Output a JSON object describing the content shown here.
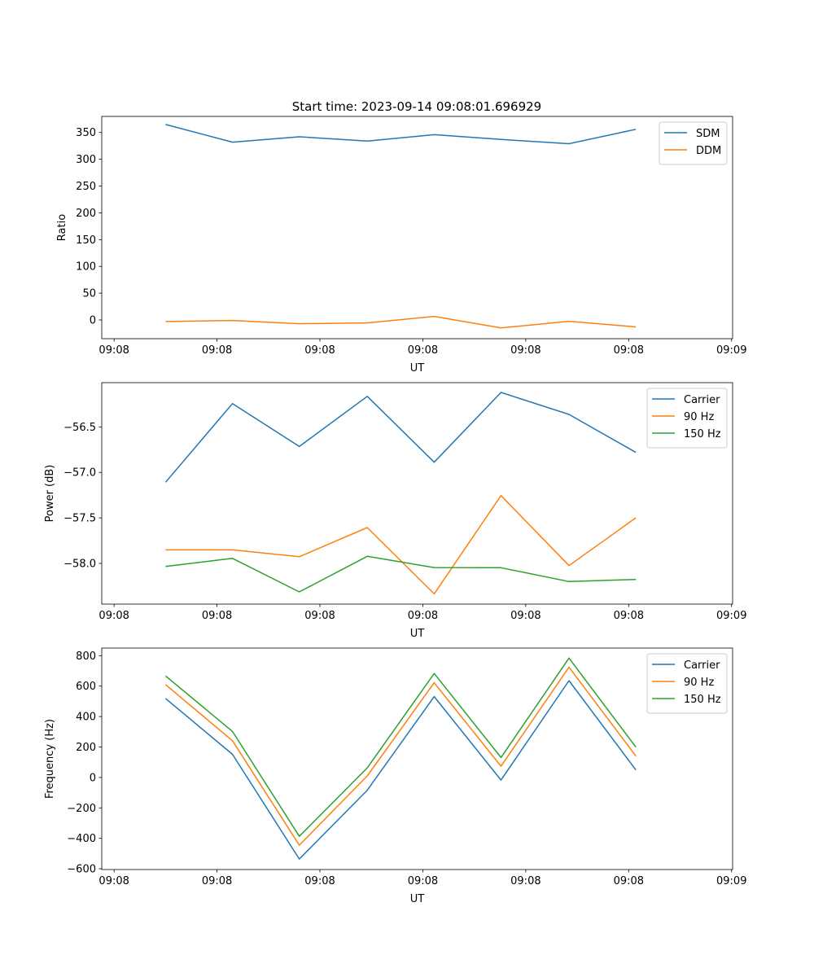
{
  "title": "Start time: 2023-09-14 09:08:01.696929",
  "colors": {
    "blue": "#1f77b4",
    "orange": "#ff7f0e",
    "green": "#2ca02c"
  },
  "chart_data": [
    {
      "type": "line",
      "title": "Start time: 2023-09-14 09:08:01.696929",
      "xlabel": "UT",
      "ylabel": "Ratio",
      "x_units": "seconds after 09:08:00",
      "x": [
        5.0,
        11.5,
        18.0,
        24.6,
        31.1,
        37.6,
        44.2,
        50.7
      ],
      "xlim": [
        -1.2,
        60.1
      ],
      "xticks": [
        0,
        10,
        20,
        30,
        40,
        50,
        60
      ],
      "xtick_labels": [
        "09:08",
        "09:08",
        "09:08",
        "09:08",
        "09:08",
        "09:08",
        "09:09"
      ],
      "ylim": [
        -35,
        380
      ],
      "yticks": [
        0,
        50,
        100,
        150,
        200,
        250,
        300,
        350
      ],
      "ytick_labels": [
        "0",
        "50",
        "100",
        "150",
        "200",
        "250",
        "300",
        "350"
      ],
      "legend": "top-right",
      "series": [
        {
          "name": "SDM",
          "color": "#1f77b4",
          "values": [
            365,
            332,
            342,
            334,
            346,
            337,
            329,
            356
          ]
        },
        {
          "name": "DDM",
          "color": "#ff7f0e",
          "values": [
            -3,
            -1,
            -7,
            -5.5,
            6.7,
            -15,
            -2.5,
            -13
          ]
        }
      ]
    },
    {
      "type": "line",
      "xlabel": "UT",
      "ylabel": "Power (dB)",
      "x_units": "seconds after 09:08:00",
      "x": [
        5.0,
        11.5,
        18.0,
        24.6,
        31.1,
        37.6,
        44.2,
        50.7
      ],
      "xlim": [
        -1.2,
        60.1
      ],
      "xticks": [
        0,
        10,
        20,
        30,
        40,
        50,
        60
      ],
      "xtick_labels": [
        "09:08",
        "09:08",
        "09:08",
        "09:08",
        "09:08",
        "09:08",
        "09:09"
      ],
      "ylim": [
        -58.447,
        -56.014
      ],
      "yticks": [
        -58.0,
        -57.5,
        -57.0,
        -56.5
      ],
      "ytick_labels": [
        "−58.0",
        "−57.5",
        "−57.0",
        "−56.5"
      ],
      "legend": "top-right",
      "series": [
        {
          "name": "Carrier",
          "color": "#1f77b4",
          "values": [
            -57.108,
            -56.244,
            -56.715,
            -56.164,
            -56.888,
            -56.121,
            -56.363,
            -56.781
          ]
        },
        {
          "name": "90 Hz",
          "color": "#ff7f0e",
          "values": [
            -57.851,
            -57.851,
            -57.926,
            -57.606,
            -58.334,
            -57.255,
            -58.024,
            -57.499
          ]
        },
        {
          "name": "150 Hz",
          "color": "#2ca02c",
          "values": [
            -58.033,
            -57.944,
            -58.313,
            -57.922,
            -58.045,
            -58.047,
            -58.199,
            -58.176
          ]
        }
      ]
    },
    {
      "type": "line",
      "xlabel": "UT",
      "ylabel": "Frequency (Hz)",
      "x_units": "seconds after 09:08:00",
      "x": [
        5.0,
        11.5,
        18.0,
        24.6,
        31.1,
        37.6,
        44.2,
        50.7
      ],
      "xlim": [
        -1.2,
        60.1
      ],
      "xticks": [
        0,
        10,
        20,
        30,
        40,
        50,
        60
      ],
      "xtick_labels": [
        "09:08",
        "09:08",
        "09:08",
        "09:08",
        "09:08",
        "09:08",
        "09:09"
      ],
      "ylim": [
        -605,
        850
      ],
      "yticks": [
        -600,
        -400,
        -200,
        0,
        200,
        400,
        600,
        800
      ],
      "ytick_labels": [
        "−600",
        "−400",
        "−200",
        "0",
        "200",
        "400",
        "600",
        "800"
      ],
      "legend": "top-right",
      "series": [
        {
          "name": "Carrier",
          "color": "#1f77b4",
          "values": [
            519,
            152,
            -536,
            -84,
            531,
            -17,
            636,
            49
          ]
        },
        {
          "name": "90 Hz",
          "color": "#ff7f0e",
          "values": [
            610,
            241,
            -445,
            10,
            622,
            74,
            725,
            140
          ]
        },
        {
          "name": "150 Hz",
          "color": "#2ca02c",
          "values": [
            667,
            302,
            -387,
            63,
            683,
            131,
            784,
            199
          ]
        }
      ]
    }
  ]
}
